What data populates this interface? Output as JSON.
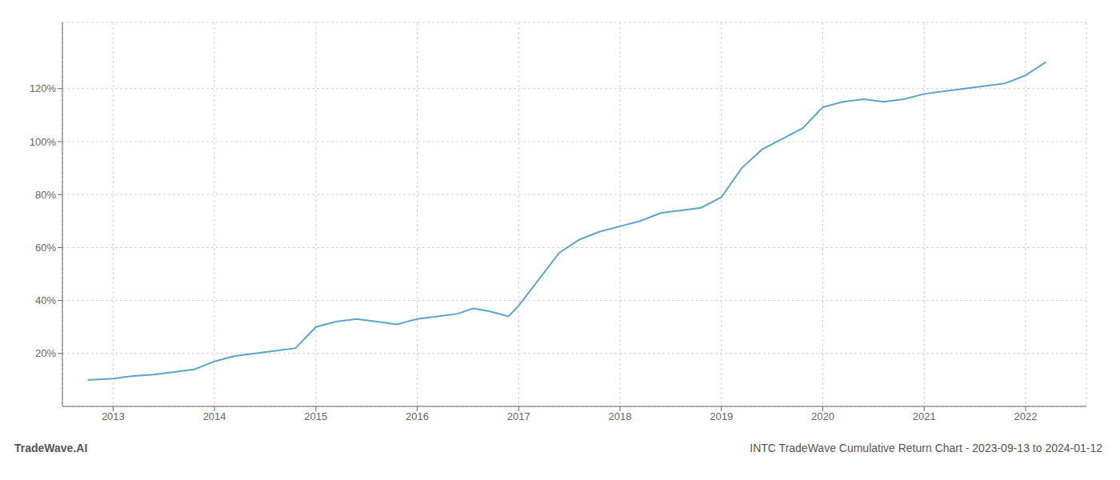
{
  "chart_data": {
    "type": "line",
    "title": "INTC TradeWave Cumulative Return Chart - 2023-09-13 to 2024-01-12",
    "annotations": [
      "TradeWave.AI"
    ],
    "x": [
      2012.75,
      2013.0,
      2013.1,
      2013.2,
      2013.4,
      2013.6,
      2013.8,
      2014.0,
      2014.2,
      2014.4,
      2014.6,
      2014.8,
      2015.0,
      2015.2,
      2015.4,
      2015.6,
      2015.8,
      2016.0,
      2016.2,
      2016.4,
      2016.55,
      2016.7,
      2016.9,
      2017.0,
      2017.2,
      2017.4,
      2017.6,
      2017.8,
      2018.0,
      2018.2,
      2018.4,
      2018.6,
      2018.8,
      2019.0,
      2019.2,
      2019.4,
      2019.6,
      2019.8,
      2020.0,
      2020.2,
      2020.4,
      2020.6,
      2020.8,
      2021.0,
      2021.2,
      2021.4,
      2021.6,
      2021.8,
      2022.0,
      2022.2
    ],
    "values": [
      10,
      10.5,
      11,
      11.5,
      12,
      13,
      14,
      17,
      19,
      20,
      21,
      22,
      30,
      32,
      33,
      32,
      31,
      33,
      34,
      35,
      37,
      36,
      34,
      38,
      48,
      58,
      63,
      66,
      68,
      70,
      73,
      74,
      75,
      79,
      90,
      97,
      101,
      105,
      113,
      115,
      116,
      115,
      116,
      118,
      119,
      120,
      121,
      122,
      125,
      130
    ],
    "color": "#5ba3d0",
    "xlim": [
      2012.5,
      2022.6
    ],
    "xticks": [
      2013,
      2014,
      2015,
      2016,
      2017,
      2018,
      2019,
      2020,
      2021,
      2022
    ],
    "ylim": [
      0,
      145
    ],
    "yticks": [
      {
        "value": 20,
        "label": "20%"
      },
      {
        "value": 40,
        "label": "40%"
      },
      {
        "value": 60,
        "label": "60%"
      },
      {
        "value": 80,
        "label": "80%"
      },
      {
        "value": 100,
        "label": "100%"
      },
      {
        "value": 120,
        "label": "120%"
      }
    ],
    "grid": true
  }
}
